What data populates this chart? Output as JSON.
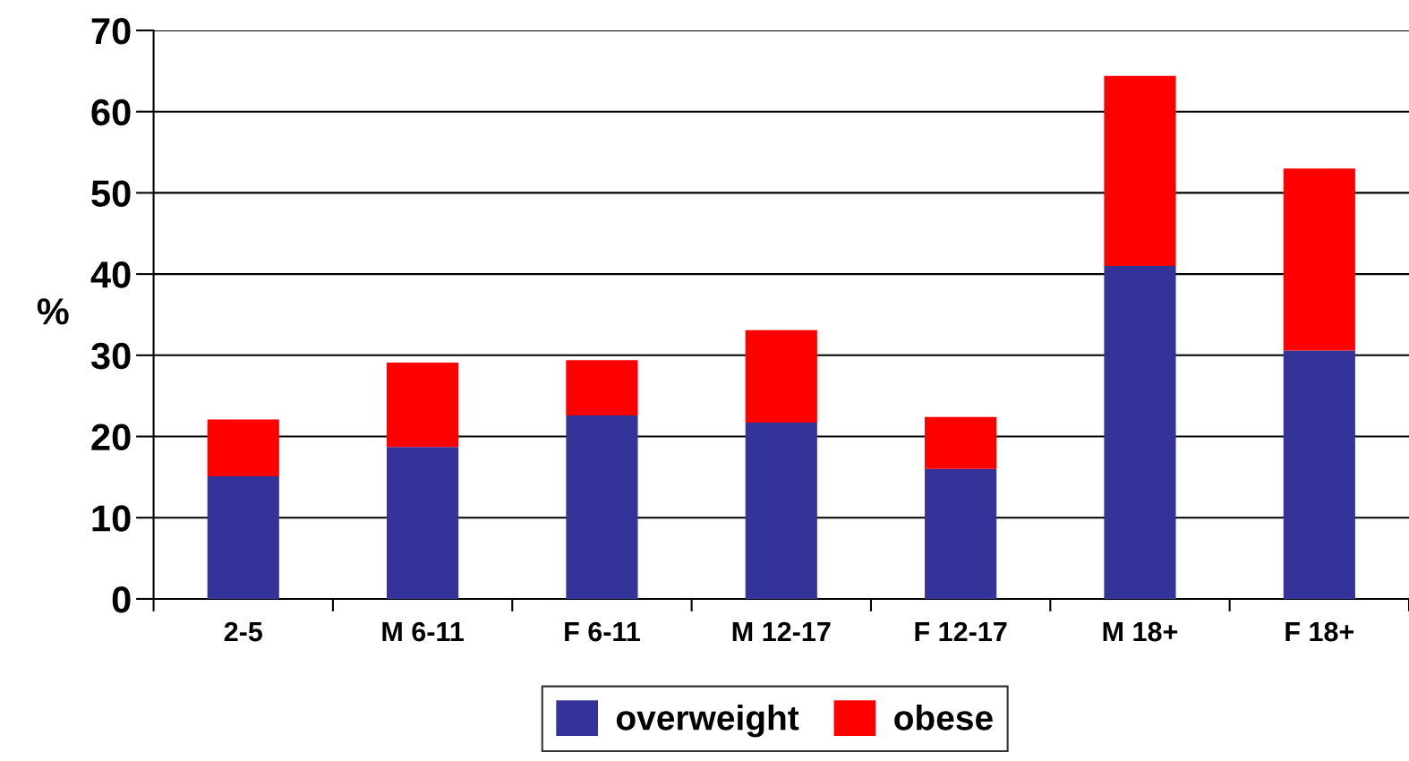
{
  "chart_data": {
    "type": "bar",
    "stacked": true,
    "ylabel": "%",
    "categories": [
      "2-5",
      "M 6-11",
      "F 6-11",
      "M 12-17",
      "F 12-17",
      "M 18+",
      "F 18+"
    ],
    "series": [
      {
        "name": "overweight",
        "color": "#333399",
        "values": [
          15.1,
          18.7,
          22.6,
          21.7,
          16.0,
          41.0,
          30.6
        ]
      },
      {
        "name": "obese",
        "color": "#ff0000",
        "values": [
          7.0,
          10.4,
          6.8,
          11.4,
          6.4,
          23.4,
          22.4
        ]
      }
    ],
    "ylim": [
      0,
      70
    ],
    "yticks": [
      0,
      10,
      20,
      30,
      40,
      50,
      60,
      70
    ],
    "grid": "y",
    "legend": "bottom"
  }
}
